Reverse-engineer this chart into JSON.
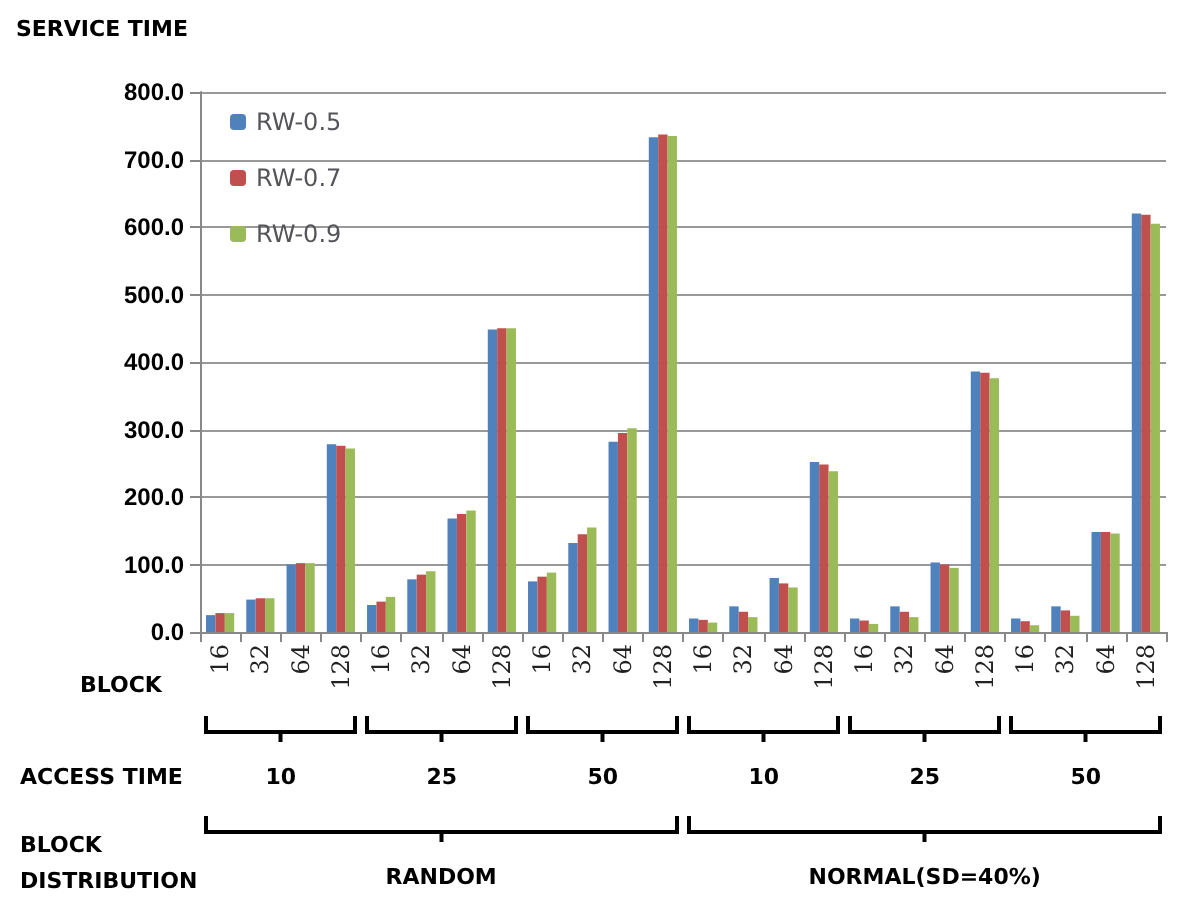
{
  "chart_data": {
    "type": "bar",
    "ylabel": "SERVICE TIME",
    "xlabel": "BLOCK",
    "categories": [
      "16",
      "32",
      "64",
      "128",
      "16",
      "32",
      "64",
      "128",
      "16",
      "32",
      "64",
      "128",
      "16",
      "32",
      "64",
      "128",
      "16",
      "32",
      "64",
      "128",
      "16",
      "32",
      "64",
      "128"
    ],
    "series": [
      {
        "name": "RW-0.5",
        "color": "#4f81bd",
        "values": [
          25,
          48,
          100,
          278,
          40,
          78,
          168,
          448,
          75,
          132,
          282,
          733,
          20,
          38,
          80,
          252,
          20,
          38,
          103,
          386,
          20,
          38,
          148,
          620
        ]
      },
      {
        "name": "RW-0.7",
        "color": "#c0504d",
        "values": [
          28,
          50,
          102,
          276,
          45,
          85,
          175,
          450,
          82,
          145,
          295,
          737,
          18,
          30,
          72,
          248,
          17,
          30,
          100,
          384,
          16,
          32,
          148,
          618
        ]
      },
      {
        "name": "RW-0.9",
        "color": "#9bbb59",
        "values": [
          28,
          50,
          102,
          272,
          52,
          90,
          180,
          450,
          88,
          155,
          302,
          735,
          14,
          22,
          66,
          238,
          12,
          22,
          95,
          376,
          10,
          24,
          146,
          605
        ]
      }
    ],
    "ylim": [
      0,
      800
    ],
    "yticks": [
      {
        "value": 0,
        "label": "0.0"
      },
      {
        "value": 100,
        "label": "100.0"
      },
      {
        "value": 200,
        "label": "200.0"
      },
      {
        "value": 300,
        "label": "300.0"
      },
      {
        "value": 400,
        "label": "400.0"
      },
      {
        "value": 500,
        "label": "500.0"
      },
      {
        "value": 600,
        "label": "600.0"
      },
      {
        "value": 700,
        "label": "700.0"
      },
      {
        "value": 800,
        "label": "800.0"
      }
    ],
    "grid": "y",
    "legend": "top left",
    "annotations": [
      "ACCESS TIME",
      "10",
      "25",
      "50",
      "10",
      "25",
      "50",
      "BLOCK DISTRIBUTION",
      "RANDOM",
      "NORMAL(SD=40%)"
    ]
  }
}
